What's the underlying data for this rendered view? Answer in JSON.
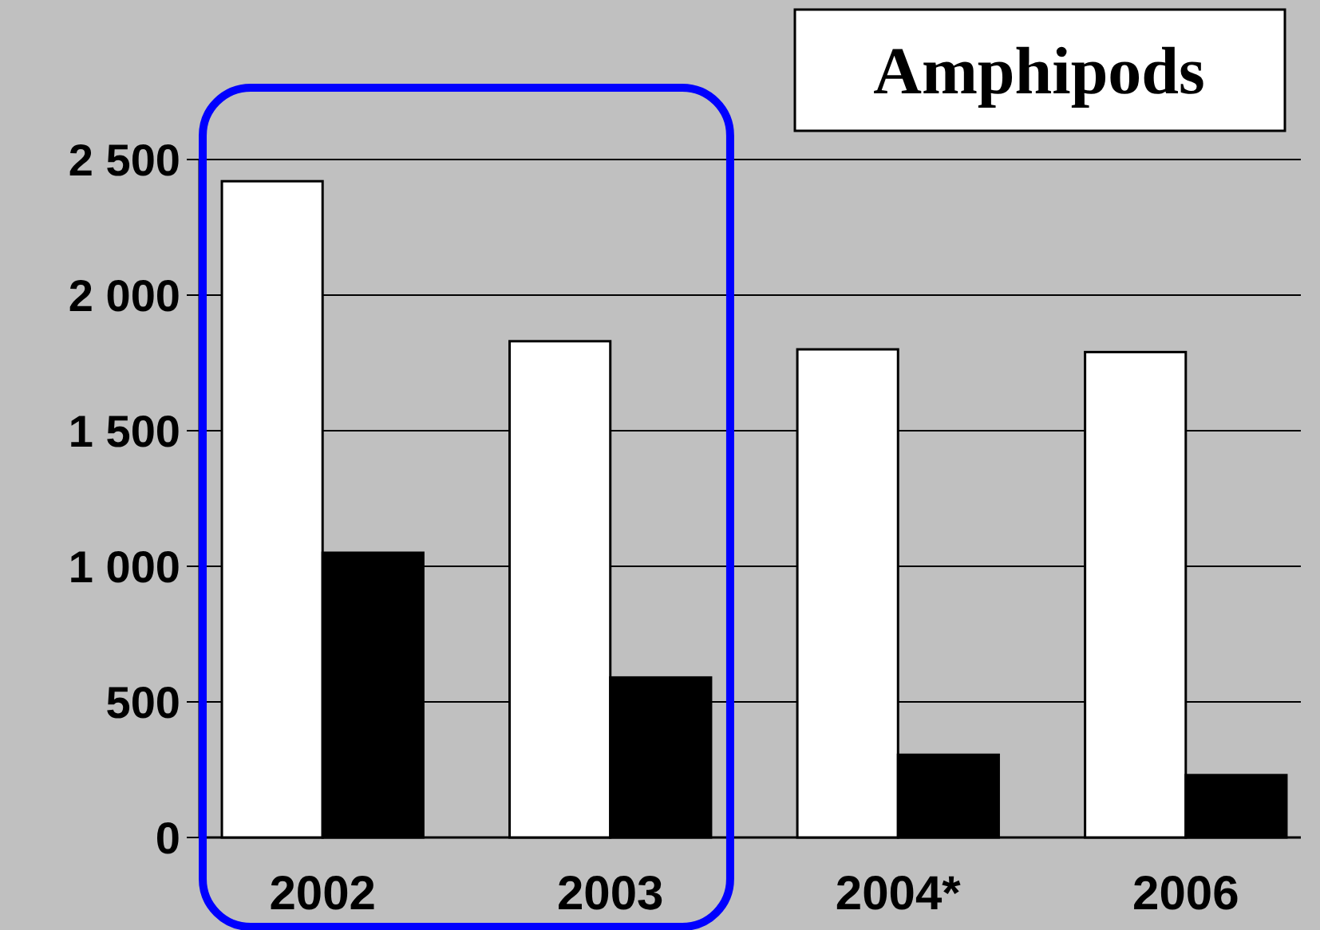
{
  "chart_data": {
    "type": "bar",
    "title": "Amphipods",
    "categories": [
      "2002",
      "2003",
      "2004*",
      "2006"
    ],
    "series": [
      {
        "color": "#ffffff",
        "values": [
          2420,
          1830,
          1800,
          1790
        ]
      },
      {
        "color": "#000000",
        "values": [
          1050,
          590,
          305,
          230
        ]
      }
    ],
    "ylim": [
      0,
      2500
    ],
    "yticks": [
      {
        "value": 0,
        "label": "0"
      },
      {
        "value": 500,
        "label": "500"
      },
      {
        "value": 1000,
        "label": "1 000"
      },
      {
        "value": 1500,
        "label": "1 500"
      },
      {
        "value": 2000,
        "label": "2 000"
      },
      {
        "value": 2500,
        "label": "2 500"
      }
    ],
    "grid": "y"
  }
}
